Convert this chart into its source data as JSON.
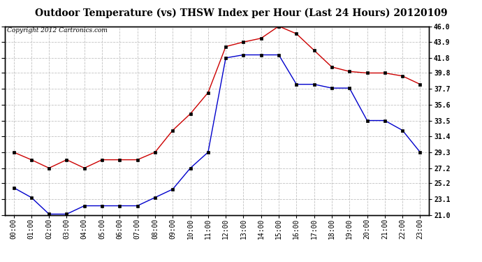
{
  "title": "Outdoor Temperature (vs) THSW Index per Hour (Last 24 Hours) 20120109",
  "copyright_text": "Copyright 2012 Cartronics.com",
  "x_labels": [
    "00:00",
    "01:00",
    "02:00",
    "03:00",
    "04:00",
    "05:00",
    "06:00",
    "07:00",
    "08:00",
    "09:00",
    "10:00",
    "11:00",
    "12:00",
    "13:00",
    "14:00",
    "15:00",
    "16:00",
    "17:00",
    "18:00",
    "19:00",
    "20:00",
    "21:00",
    "22:00",
    "23:00"
  ],
  "blue_data": [
    24.6,
    23.3,
    21.1,
    21.1,
    22.2,
    22.2,
    22.2,
    22.2,
    23.3,
    24.4,
    27.2,
    29.3,
    41.8,
    42.2,
    42.2,
    42.2,
    38.3,
    38.3,
    37.8,
    37.8,
    33.5,
    33.5,
    32.2,
    29.3
  ],
  "red_data": [
    29.3,
    28.3,
    27.2,
    28.3,
    27.2,
    28.3,
    28.3,
    28.3,
    29.3,
    32.2,
    34.4,
    37.2,
    43.3,
    43.9,
    44.4,
    46.0,
    45.0,
    42.8,
    40.6,
    40.0,
    39.8,
    39.8,
    39.4,
    38.3
  ],
  "ylim": [
    21.0,
    46.0
  ],
  "yticks": [
    21.0,
    23.1,
    25.2,
    27.2,
    29.3,
    31.4,
    33.5,
    35.6,
    37.7,
    39.8,
    41.8,
    43.9,
    46.0
  ],
  "blue_color": "#0000cc",
  "red_color": "#cc0000",
  "background_color": "#ffffff",
  "plot_bg_color": "#ffffff",
  "grid_color": "#bbbbbb",
  "title_fontsize": 10,
  "tick_fontsize": 7,
  "copyright_fontsize": 6.5
}
